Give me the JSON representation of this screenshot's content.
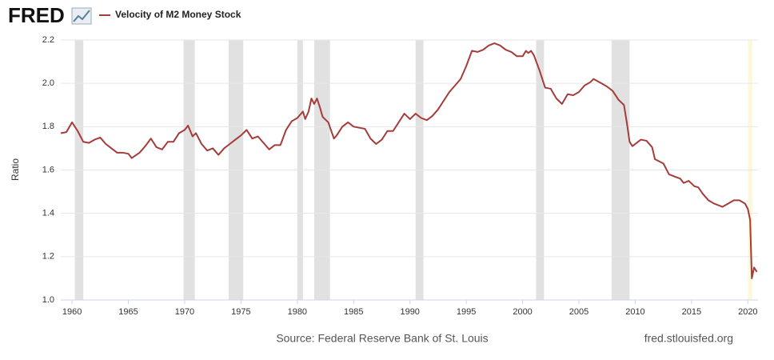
{
  "logo": "FRED",
  "source": "Source: Federal Reserve Bank of St. Louis",
  "site": "fred.stlouisfed.org",
  "chart_data": {
    "type": "line",
    "y_label": "Ratio",
    "xlim": [
      1959,
      2020.9
    ],
    "xticks": [
      1960,
      1965,
      1970,
      1975,
      1980,
      1985,
      1990,
      1995,
      2000,
      2005,
      2010,
      2015,
      2020
    ],
    "ylim": [
      1.0,
      2.2
    ],
    "yticks": [
      {
        "value": 1.0,
        "label": "1.0"
      },
      1.2,
      1.4,
      1.6,
      1.8,
      {
        "value": 2.0,
        "label": "2.0"
      },
      2.2
    ],
    "grid": true,
    "recession_color": "#e1e1e1",
    "recessions": [
      [
        1960.25,
        1961.0
      ],
      [
        1969.9,
        1970.9
      ],
      [
        1973.9,
        1975.2
      ],
      [
        1980.0,
        1980.5
      ],
      [
        1981.5,
        1982.9
      ],
      [
        1990.5,
        1991.2
      ],
      [
        2001.2,
        2001.9
      ],
      [
        2007.9,
        2009.5
      ]
    ],
    "preliminary_color": "#fbf8dc",
    "preliminary": [
      [
        2020.0,
        2020.4
      ]
    ],
    "x": [
      1959.0,
      1959.5,
      1960.0,
      1960.5,
      1961.0,
      1961.5,
      1962.0,
      1962.5,
      1963.0,
      1963.5,
      1964.0,
      1964.5,
      1965.0,
      1965.3,
      1966.0,
      1966.5,
      1967.0,
      1967.5,
      1968.0,
      1968.5,
      1969.0,
      1969.5,
      1970.0,
      1970.3,
      1970.7,
      1971.0,
      1971.5,
      1972.0,
      1972.5,
      1973.0,
      1973.5,
      1974.0,
      1974.5,
      1975.0,
      1975.5,
      1976.0,
      1976.5,
      1977.0,
      1977.5,
      1978.0,
      1978.5,
      1979.0,
      1979.5,
      1980.0,
      1980.5,
      1980.7,
      1981.0,
      1981.25,
      1981.5,
      1981.75,
      1982.0,
      1982.25,
      1982.75,
      1983.25,
      1983.5,
      1984.0,
      1984.5,
      1985.0,
      1985.5,
      1986.0,
      1986.5,
      1987.0,
      1987.5,
      1988.0,
      1988.5,
      1989.0,
      1989.5,
      1990.0,
      1990.5,
      1991.0,
      1991.5,
      1992.0,
      1992.5,
      1993.0,
      1993.5,
      1994.0,
      1994.5,
      1995.0,
      1995.5,
      1996.0,
      1996.5,
      1997.0,
      1997.5,
      1998.0,
      1998.5,
      1999.0,
      1999.5,
      2000.0,
      2000.3,
      2000.5,
      2000.75,
      2001.0,
      2001.5,
      2002.0,
      2002.5,
      2003.0,
      2003.5,
      2004.0,
      2004.5,
      2005.0,
      2005.5,
      2006.0,
      2006.3,
      2007.0,
      2007.5,
      2008.0,
      2008.5,
      2009.0,
      2009.25,
      2009.5,
      2009.75,
      2010.0,
      2010.5,
      2011.0,
      2011.5,
      2011.75,
      2012.5,
      2013.0,
      2013.5,
      2014.0,
      2014.3,
      2014.75,
      2015.25,
      2015.6,
      2016.0,
      2016.5,
      2017.0,
      2017.75,
      2018.25,
      2018.75,
      2019.25,
      2019.75,
      2020.0,
      2020.2,
      2020.35,
      2020.55,
      2020.8
    ],
    "series": [
      {
        "name": "Velocity of M2 Money Stock",
        "color": "#a63c3a",
        "values": [
          1.77,
          1.775,
          1.82,
          1.78,
          1.73,
          1.725,
          1.74,
          1.75,
          1.72,
          1.7,
          1.68,
          1.68,
          1.675,
          1.655,
          1.68,
          1.71,
          1.745,
          1.705,
          1.695,
          1.73,
          1.73,
          1.77,
          1.785,
          1.805,
          1.755,
          1.77,
          1.72,
          1.69,
          1.7,
          1.67,
          1.7,
          1.72,
          1.74,
          1.76,
          1.785,
          1.745,
          1.755,
          1.725,
          1.695,
          1.715,
          1.715,
          1.785,
          1.825,
          1.84,
          1.87,
          1.835,
          1.87,
          1.93,
          1.905,
          1.93,
          1.89,
          1.845,
          1.82,
          1.745,
          1.76,
          1.8,
          1.82,
          1.8,
          1.795,
          1.79,
          1.745,
          1.72,
          1.74,
          1.78,
          1.78,
          1.82,
          1.86,
          1.835,
          1.86,
          1.84,
          1.83,
          1.85,
          1.88,
          1.92,
          1.96,
          1.99,
          2.02,
          2.08,
          2.15,
          2.145,
          2.155,
          2.175,
          2.185,
          2.175,
          2.155,
          2.145,
          2.125,
          2.125,
          2.15,
          2.14,
          2.15,
          2.13,
          2.06,
          1.98,
          1.975,
          1.93,
          1.905,
          1.95,
          1.945,
          1.96,
          1.99,
          2.005,
          2.02,
          2.0,
          1.985,
          1.965,
          1.925,
          1.9,
          1.82,
          1.73,
          1.71,
          1.72,
          1.74,
          1.735,
          1.705,
          1.65,
          1.63,
          1.58,
          1.57,
          1.56,
          1.54,
          1.55,
          1.525,
          1.52,
          1.49,
          1.46,
          1.445,
          1.43,
          1.445,
          1.46,
          1.46,
          1.445,
          1.42,
          1.37,
          1.1,
          1.15,
          1.13
        ]
      }
    ]
  }
}
